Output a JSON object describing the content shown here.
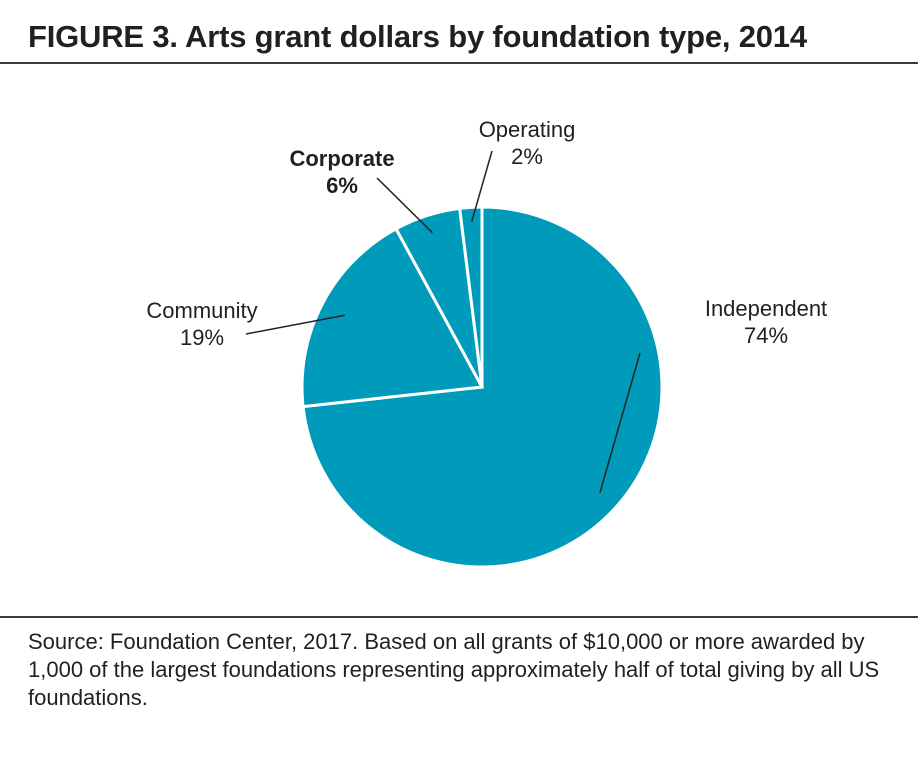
{
  "figure": {
    "title": "FIGURE 3. Arts grant dollars by foundation type, 2014",
    "source": "Source: Foundation Center, 2017. Based on all grants of $10,000 or more awarded by 1,000 of the largest foundations representing approximately half of total giving by all US foundations."
  },
  "colors": {
    "slice": "#009abb",
    "slice_edge": "#ffffff",
    "rule": "#3a3a3a",
    "text": "#231f20"
  },
  "chart_data": {
    "type": "pie",
    "title": "FIGURE 3. Arts grant dollars by foundation type, 2014",
    "start": "12 o'clock",
    "direction": "clockwise",
    "legend": "none",
    "slices": [
      {
        "name": "Independent",
        "value": 74,
        "label": "74%",
        "emphasis": false
      },
      {
        "name": "Community",
        "value": 19,
        "label": "19%",
        "emphasis": false
      },
      {
        "name": "Corporate",
        "value": 6,
        "label": "6%",
        "emphasis": true
      },
      {
        "name": "Operating",
        "value": 2,
        "label": "2%",
        "emphasis": false
      }
    ]
  }
}
